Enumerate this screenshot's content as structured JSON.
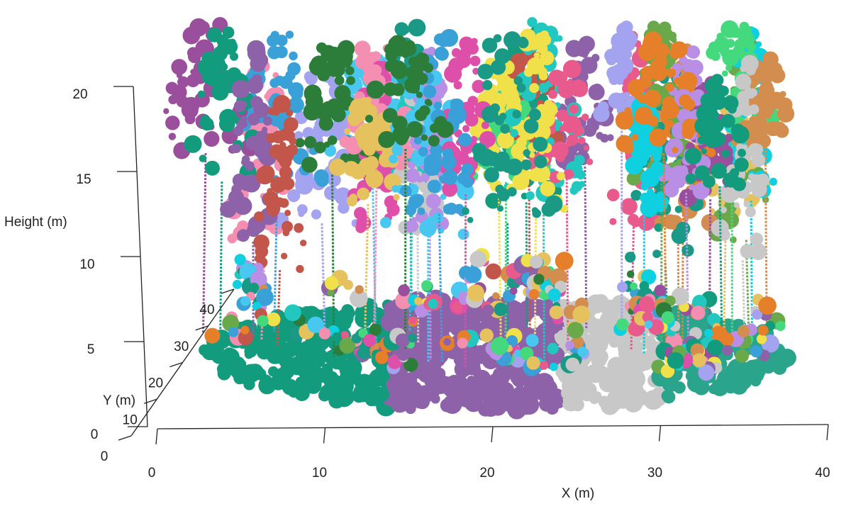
{
  "chart_data": {
    "type": "scatter3d",
    "xlabel": "X (m)",
    "ylabel": "Y (m)",
    "zlabel": "Height (m)",
    "xlim": [
      0,
      40
    ],
    "xticks": [
      0,
      10,
      20,
      30,
      40
    ],
    "ylim": [
      0,
      40
    ],
    "yticks": [
      0,
      10,
      20,
      30,
      40
    ],
    "zlim": [
      0,
      20
    ],
    "zticks": [
      0,
      5,
      10,
      15,
      20
    ]
  }
}
